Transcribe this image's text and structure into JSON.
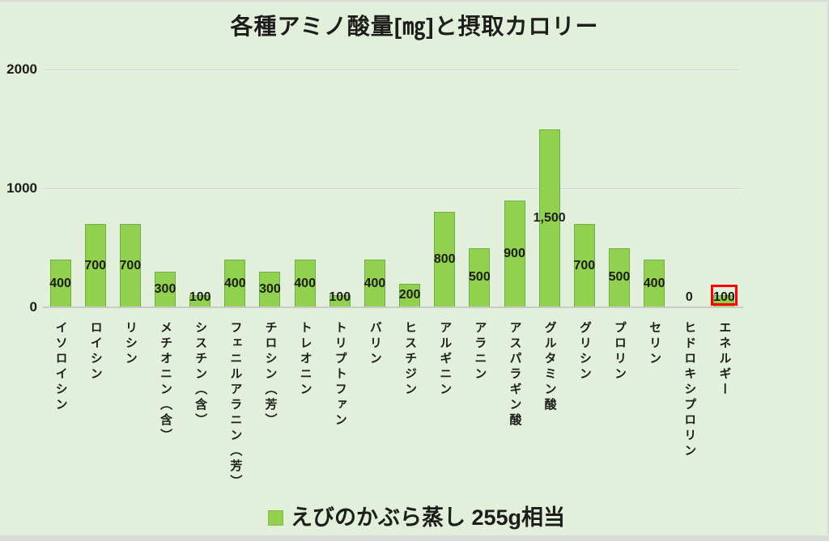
{
  "title": "各種アミノ酸量[㎎]と摂取カロリー",
  "y_axis": {
    "tick_labels": [
      "2000",
      "1000",
      "0"
    ]
  },
  "legend": {
    "series_label": "えびのかぶら蒸し 255g相当",
    "swatch_color": "#92d050",
    "position": "bottom"
  },
  "chart_data": {
    "type": "bar",
    "title": "各種アミノ酸量[㎎]と摂取カロリー",
    "xlabel": "",
    "ylabel": "",
    "ylim": [
      0,
      2000
    ],
    "y_ticks": [
      0,
      1000,
      2000
    ],
    "grid": true,
    "legend_position": "bottom",
    "categories": [
      "イソロイシン",
      "ロイシン",
      "リシン",
      "メチオニン（含）",
      "シスチン（含）",
      "フェニルアラニン（芳）",
      "チロシン（芳）",
      "トレオニン",
      "トリプトファン",
      "バリン",
      "ヒスチジン",
      "アルギニン",
      "アラニン",
      "アスパラギン酸",
      "グルタミン酸",
      "グリシン",
      "プロリン",
      "セリン",
      "ヒドロキシプロリン",
      "エネルギー"
    ],
    "series": [
      {
        "name": "えびのかぶら蒸し 255g相当",
        "values": [
          400,
          700,
          700,
          300,
          100,
          400,
          300,
          400,
          100,
          400,
          200,
          800,
          500,
          900,
          1500,
          700,
          500,
          400,
          0,
          100
        ],
        "value_labels": [
          "400",
          "700",
          "700",
          "300",
          "100",
          "400",
          "300",
          "400",
          "100",
          "400",
          "200",
          "800",
          "500",
          "900",
          "1,500",
          "700",
          "500",
          "400",
          "0",
          "100"
        ]
      }
    ],
    "highlight": {
      "category": "エネルギー",
      "index": 19,
      "shape": "red-box-around-value-label",
      "color": "#ff0000"
    }
  },
  "colors": {
    "background": "#e2efda",
    "bar_fill": "#92d050",
    "bar_border": "#70ad47",
    "gridline": "#d1d5cf",
    "axis_line": "#c7cbc5",
    "text": "#1d1d1b",
    "highlight": "#ff0000",
    "frame_edge": "#d7dbd5"
  }
}
